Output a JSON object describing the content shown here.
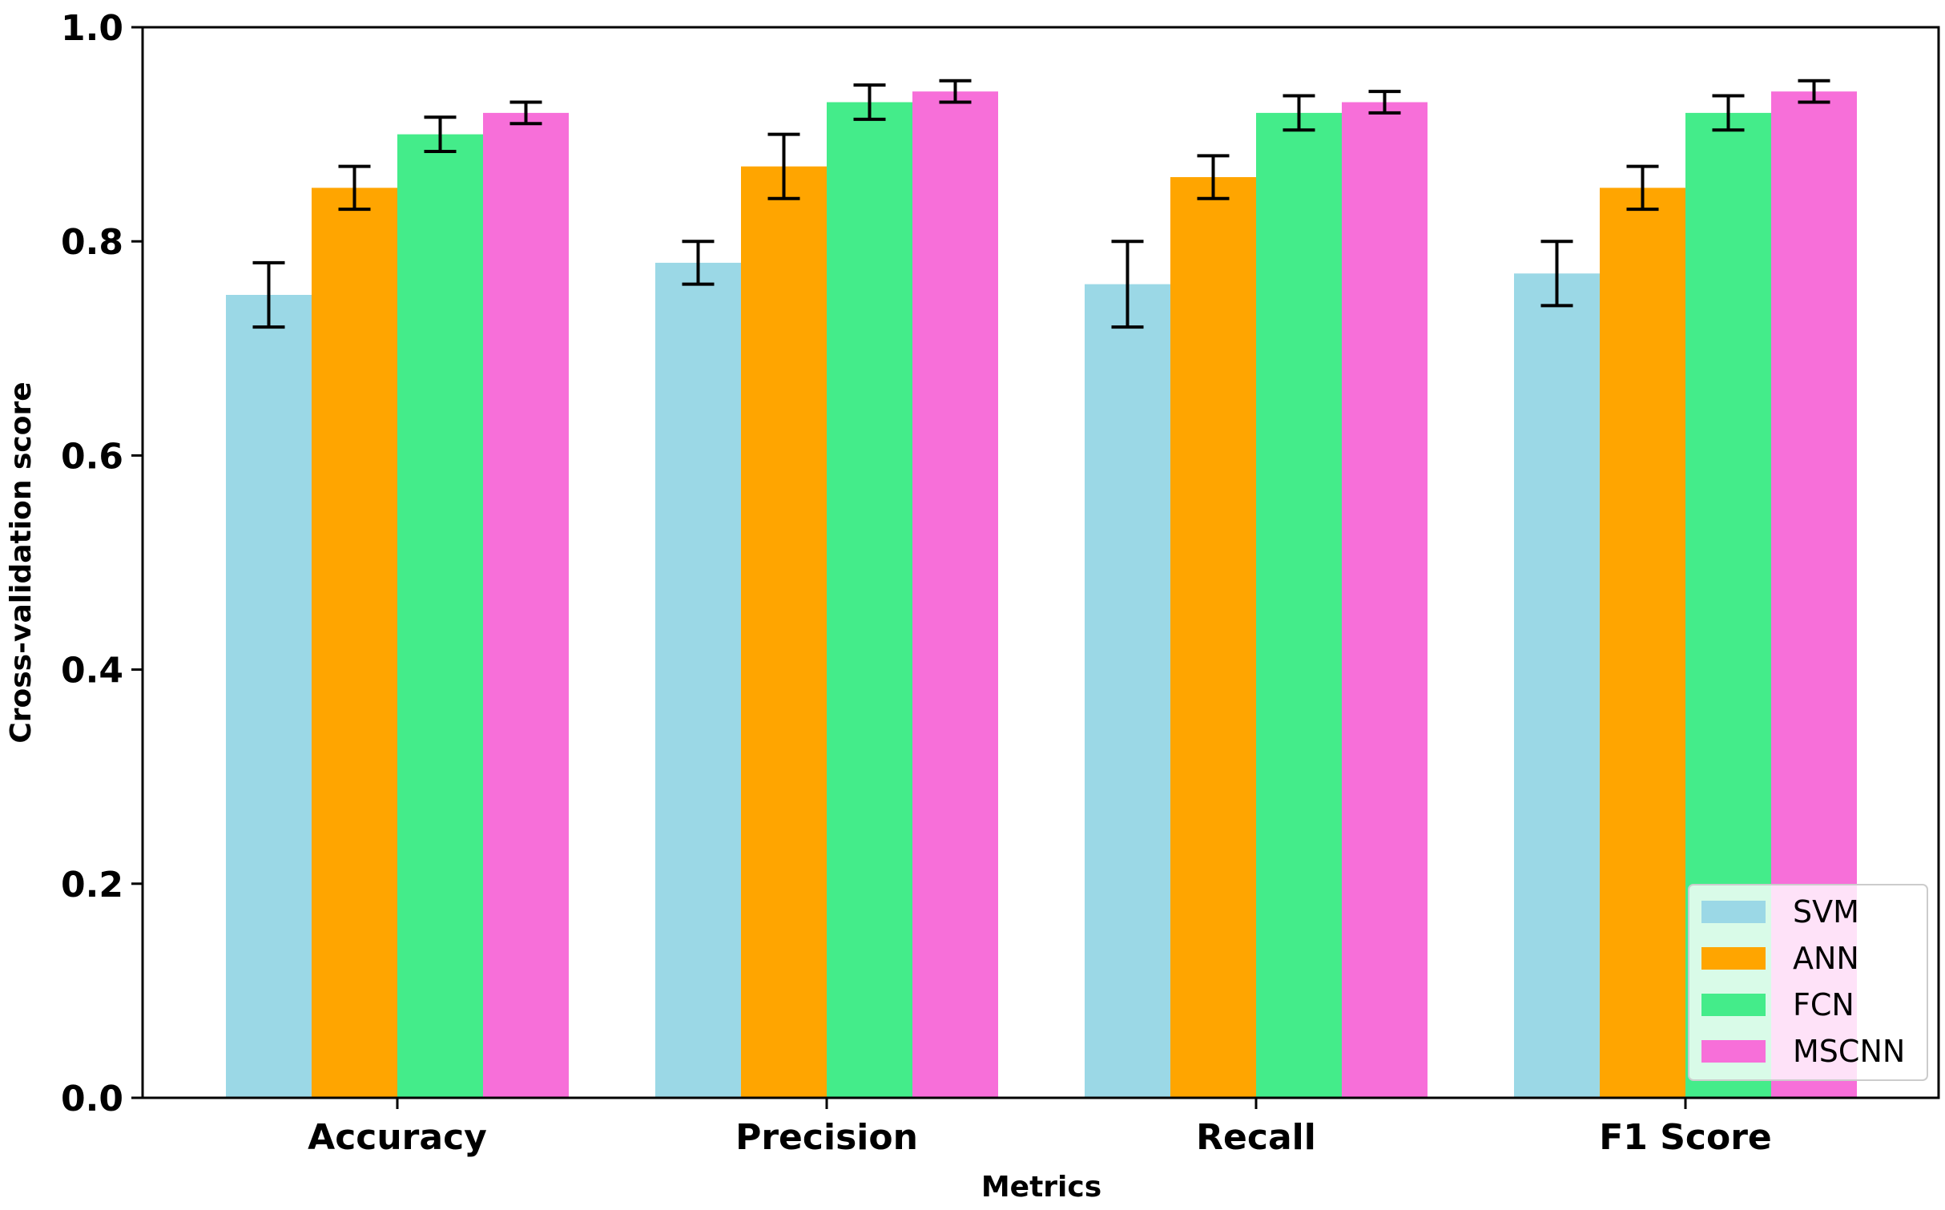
{
  "chart_data": {
    "type": "bar",
    "title": "",
    "xlabel": "Metrics",
    "ylabel": "Cross-validation score",
    "ylim": [
      0,
      1.0
    ],
    "yticks": [
      0.0,
      0.2,
      0.4,
      0.6,
      0.8,
      1.0
    ],
    "ytick_labels": [
      "0.0",
      "0.2",
      "0.4",
      "0.6",
      "0.8",
      "1.0"
    ],
    "categories": [
      "Accuracy",
      "Precision",
      "Recall",
      "F1 Score"
    ],
    "grid": false,
    "legend_position": "bottom-right",
    "series": [
      {
        "name": "SVM",
        "color": "#9bd8e6",
        "values": [
          0.75,
          0.78,
          0.76,
          0.77
        ],
        "errors": [
          0.03,
          0.02,
          0.04,
          0.03
        ]
      },
      {
        "name": "ANN",
        "color": "#ffa500",
        "values": [
          0.85,
          0.87,
          0.86,
          0.85
        ],
        "errors": [
          0.02,
          0.03,
          0.02,
          0.02
        ]
      },
      {
        "name": "FCN",
        "color": "#44ec8a",
        "values": [
          0.9,
          0.93,
          0.92,
          0.92
        ],
        "errors": [
          0.016,
          0.016,
          0.016,
          0.016
        ]
      },
      {
        "name": "MSCNN",
        "color": "#f76fd9",
        "values": [
          0.92,
          0.94,
          0.93,
          0.94
        ],
        "errors": [
          0.01,
          0.01,
          0.01,
          0.01
        ]
      }
    ]
  }
}
